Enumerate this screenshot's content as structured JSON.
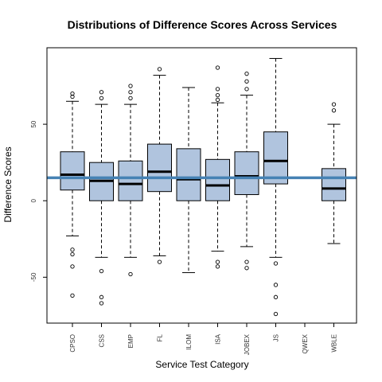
{
  "chart_data": {
    "type": "box",
    "title": "Distributions of Difference Scores Across Services",
    "xlabel": "Service Test Category",
    "ylabel": "Difference Scores",
    "ylim": [
      -80,
      100
    ],
    "yticks": [
      -50,
      0,
      50
    ],
    "reference_line": 15,
    "colors": {
      "box_fill": "#b0c4de",
      "reference_line": "#4682b4",
      "stroke": "#000000"
    },
    "categories": [
      "CPSO",
      "CSS",
      "EMP",
      "FL",
      "ILOM",
      "ISA",
      "JOBEX",
      "JS",
      "QWEX",
      "WBLE"
    ],
    "boxes": [
      {
        "category": "CPSO",
        "whisker_low": -23,
        "q1": 7,
        "median": 17,
        "q3": 32,
        "whisker_high": 65,
        "outliers": [
          68,
          70,
          -32,
          -35,
          -43,
          -62
        ]
      },
      {
        "category": "CSS",
        "whisker_low": -37,
        "q1": 0,
        "median": 13,
        "q3": 25,
        "whisker_high": 63,
        "outliers": [
          67,
          71,
          -46,
          -63,
          -67
        ]
      },
      {
        "category": "EMP",
        "whisker_low": -37,
        "q1": 0,
        "median": 11,
        "q3": 26,
        "whisker_high": 63,
        "outliers": [
          67,
          71,
          75,
          -48
        ]
      },
      {
        "category": "FL",
        "whisker_low": -36,
        "q1": 6,
        "median": 19,
        "q3": 37,
        "whisker_high": 82,
        "outliers": [
          86,
          -40
        ]
      },
      {
        "category": "ILOM",
        "whisker_low": -47,
        "q1": 0,
        "median": 14,
        "q3": 34,
        "whisker_high": 74,
        "outliers": []
      },
      {
        "category": "ISA",
        "whisker_low": -33,
        "q1": 0,
        "median": 10,
        "q3": 27,
        "whisker_high": 64,
        "outliers": [
          69,
          73,
          66,
          87,
          -40,
          -43
        ]
      },
      {
        "category": "JOBEX",
        "whisker_low": -30,
        "q1": 4,
        "median": 16,
        "q3": 32,
        "whisker_high": 69,
        "outliers": [
          73,
          78,
          83,
          -40,
          -44
        ]
      },
      {
        "category": "JS",
        "whisker_low": -37,
        "q1": 11,
        "median": 26,
        "q3": 45,
        "whisker_high": 93,
        "outliers": [
          -41,
          -55,
          -63,
          -74
        ]
      },
      {
        "category": "QWEX",
        "whisker_low": null,
        "q1": null,
        "median": null,
        "q3": null,
        "whisker_high": null,
        "outliers": []
      },
      {
        "category": "WBLE",
        "whisker_low": -28,
        "q1": 0,
        "median": 8,
        "q3": 21,
        "whisker_high": 50,
        "outliers": [
          59,
          63
        ]
      }
    ]
  }
}
